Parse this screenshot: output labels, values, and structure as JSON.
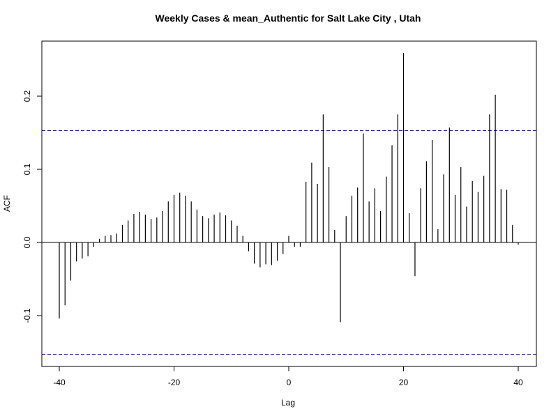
{
  "chart_data": {
    "type": "bar",
    "title": "Weekly Cases & mean_Authentic for Salt Lake City , Utah",
    "xlabel": "Lag",
    "ylabel": "ACF",
    "xlim": [
      -40,
      40
    ],
    "ylim": [
      -0.155,
      0.26
    ],
    "xticks": [
      -40,
      -20,
      0,
      20,
      40
    ],
    "yticks": [
      -0.1,
      0.0,
      0.1,
      0.2
    ],
    "xtick_labels": [
      "-40",
      "-20",
      "0",
      "20",
      "40"
    ],
    "ytick_labels": [
      "-0.1",
      "0.0",
      "0.1",
      "0.2"
    ],
    "zero_line": 0,
    "confidence_bounds": [
      0.153,
      -0.153
    ],
    "confidence_color": "#00008B",
    "bar_color": "#000000",
    "grid": false,
    "lags": [
      -40,
      -39,
      -38,
      -37,
      -36,
      -35,
      -34,
      -33,
      -32,
      -31,
      -30,
      -29,
      -28,
      -27,
      -26,
      -25,
      -24,
      -23,
      -22,
      -21,
      -20,
      -19,
      -18,
      -17,
      -16,
      -15,
      -14,
      -13,
      -12,
      -11,
      -10,
      -9,
      -8,
      -7,
      -6,
      -5,
      -4,
      -3,
      -2,
      -1,
      0,
      1,
      2,
      3,
      4,
      5,
      6,
      7,
      8,
      9,
      10,
      11,
      12,
      13,
      14,
      15,
      16,
      17,
      18,
      19,
      20,
      21,
      22,
      23,
      24,
      25,
      26,
      27,
      28,
      29,
      30,
      31,
      32,
      33,
      34,
      35,
      36,
      37,
      38,
      39,
      40
    ],
    "values": [
      -0.104,
      -0.086,
      -0.052,
      -0.026,
      -0.022,
      -0.019,
      -0.006,
      0.005,
      0.009,
      0.01,
      0.012,
      0.024,
      0.03,
      0.039,
      0.042,
      0.038,
      0.032,
      0.034,
      0.043,
      0.056,
      0.065,
      0.068,
      0.064,
      0.056,
      0.045,
      0.036,
      0.033,
      0.038,
      0.041,
      0.037,
      0.03,
      0.023,
      0.009,
      -0.012,
      -0.029,
      -0.034,
      -0.03,
      -0.031,
      -0.025,
      -0.016,
      0.009,
      -0.006,
      -0.006,
      0.083,
      0.109,
      0.08,
      0.175,
      0.103,
      0.017,
      -0.109,
      0.036,
      0.064,
      0.075,
      0.149,
      0.056,
      0.074,
      0.043,
      0.09,
      0.133,
      0.175,
      0.259,
      0.04,
      -0.046,
      0.074,
      0.111,
      0.14,
      0.018,
      0.093,
      0.157,
      0.065,
      0.103,
      0.049,
      0.084,
      0.069,
      0.091,
      0.175,
      0.202,
      0.073,
      0.072,
      0.024,
      -0.003
    ]
  }
}
